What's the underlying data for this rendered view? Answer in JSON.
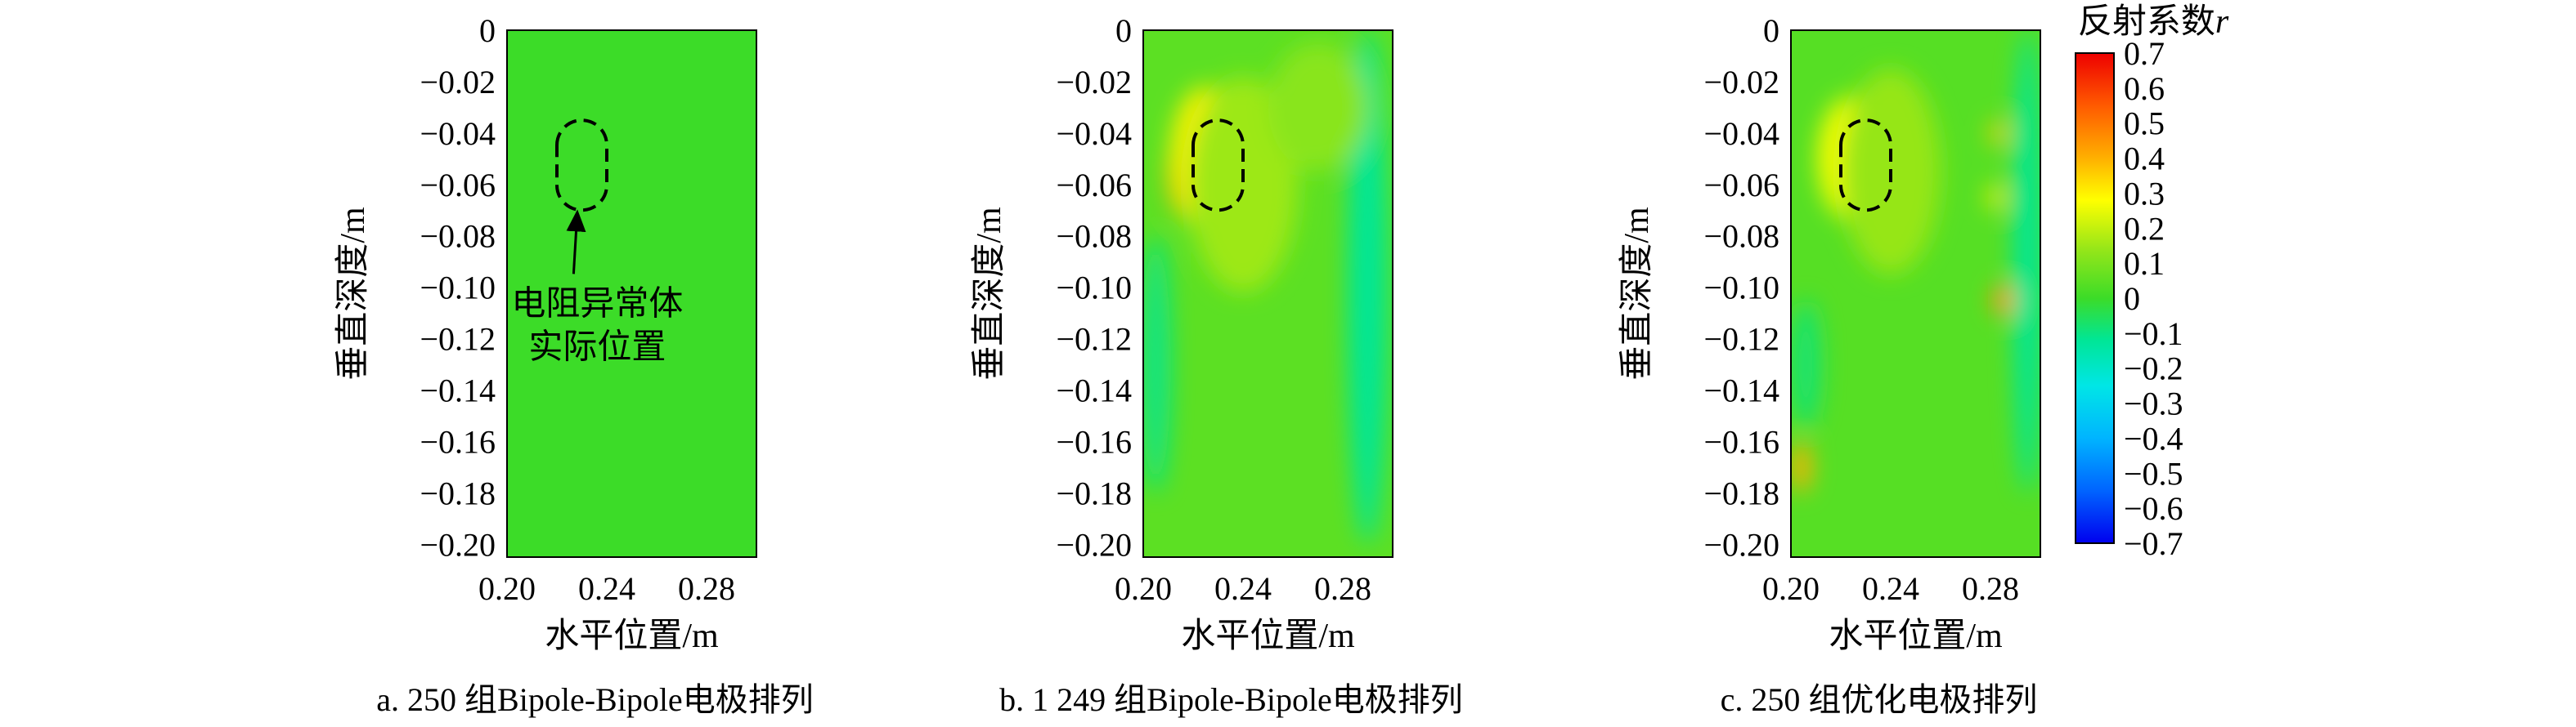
{
  "chart_data": [
    {
      "type": "heatmap",
      "panel": "a",
      "caption": "a. 250 组Bipole-Bipole电极排列",
      "xlabel": "水平位置/m",
      "ylabel": "垂直深度/m",
      "xlim": [
        0.2,
        0.3
      ],
      "ylim": [
        -0.205,
        0
      ],
      "x_ticks": [
        "0.20",
        "0.24",
        "0.28"
      ],
      "y_ticks": [
        "0",
        "−0.02",
        "−0.04",
        "−0.06",
        "−0.08",
        "−0.10",
        "−0.12",
        "−0.14",
        "−0.16",
        "−0.18",
        "−0.20"
      ],
      "background_value": 0.0,
      "blobs": [],
      "anomaly_outline": {
        "x_center": 0.23,
        "y_top": -0.035,
        "y_bottom": -0.07,
        "width": 0.02
      },
      "annotation": {
        "lines": [
          "电阻异常体",
          "实际位置"
        ],
        "arrow_to": [
          0.228,
          -0.071
        ]
      }
    },
    {
      "type": "heatmap",
      "panel": "b",
      "caption": "b. 1 249 组Bipole-Bipole电极排列",
      "xlabel": "水平位置/m",
      "ylabel": "垂直深度/m",
      "xlim": [
        0.2,
        0.3
      ],
      "ylim": [
        -0.205,
        0
      ],
      "x_ticks": [
        "0.20",
        "0.24",
        "0.28"
      ],
      "y_ticks": [
        "0",
        "−0.02",
        "−0.04",
        "−0.06",
        "−0.08",
        "−0.10",
        "−0.12",
        "−0.14",
        "−0.16",
        "−0.18",
        "−0.20"
      ],
      "background_value": 0.05,
      "blobs": [
        {
          "x": 0.218,
          "y": -0.055,
          "rx": 0.008,
          "ry": 0.018,
          "value": 0.5
        },
        {
          "x": 0.225,
          "y": -0.05,
          "rx": 0.014,
          "ry": 0.028,
          "value": 0.3
        },
        {
          "x": 0.24,
          "y": -0.06,
          "rx": 0.022,
          "ry": 0.042,
          "value": 0.15
        },
        {
          "x": 0.205,
          "y": -0.13,
          "rx": 0.006,
          "ry": 0.05,
          "value": -0.1
        },
        {
          "x": 0.29,
          "y": -0.1,
          "rx": 0.008,
          "ry": 0.1,
          "value": -0.12
        },
        {
          "x": 0.27,
          "y": -0.03,
          "rx": 0.02,
          "ry": 0.025,
          "value": 0.12
        }
      ],
      "anomaly_outline": {
        "x_center": 0.23,
        "y_top": -0.035,
        "y_bottom": -0.07,
        "width": 0.02
      }
    },
    {
      "type": "heatmap",
      "panel": "c",
      "caption": "c. 250 组优化电极排列",
      "xlabel": "水平位置/m",
      "ylabel": "垂直深度/m",
      "xlim": [
        0.2,
        0.3
      ],
      "ylim": [
        -0.205,
        0
      ],
      "x_ticks": [
        "0.20",
        "0.24",
        "0.28"
      ],
      "y_ticks": [
        "0",
        "−0.02",
        "−0.04",
        "−0.06",
        "−0.08",
        "−0.10",
        "−0.12",
        "−0.14",
        "−0.16",
        "−0.18",
        "−0.20"
      ],
      "background_value": 0.04,
      "blobs": [
        {
          "x": 0.219,
          "y": -0.048,
          "rx": 0.008,
          "ry": 0.014,
          "value": 0.45
        },
        {
          "x": 0.224,
          "y": -0.05,
          "rx": 0.013,
          "ry": 0.024,
          "value": 0.28
        },
        {
          "x": 0.24,
          "y": -0.055,
          "rx": 0.02,
          "ry": 0.04,
          "value": 0.14
        },
        {
          "x": 0.204,
          "y": -0.17,
          "rx": 0.004,
          "ry": 0.01,
          "value": 0.4
        },
        {
          "x": 0.206,
          "y": -0.13,
          "rx": 0.006,
          "ry": 0.025,
          "value": -0.08
        },
        {
          "x": 0.295,
          "y": -0.09,
          "rx": 0.006,
          "ry": 0.09,
          "value": -0.12
        },
        {
          "x": 0.285,
          "y": -0.105,
          "rx": 0.004,
          "ry": 0.006,
          "value": 0.45
        },
        {
          "x": 0.283,
          "y": -0.04,
          "rx": 0.003,
          "ry": 0.005,
          "value": 0.35
        },
        {
          "x": 0.282,
          "y": -0.065,
          "rx": 0.003,
          "ry": 0.005,
          "value": 0.3
        }
      ],
      "anomaly_outline": {
        "x_center": 0.23,
        "y_top": -0.035,
        "y_bottom": -0.07,
        "width": 0.02
      },
      "colorbar": {
        "title": "反射系数",
        "title_symbol": "r",
        "range": [
          -0.7,
          0.7
        ],
        "ticks": [
          "0.7",
          "0.6",
          "0.5",
          "0.4",
          "0.3",
          "0.2",
          "0.1",
          "0",
          "−0.1",
          "−0.2",
          "−0.3",
          "−0.4",
          "−0.5",
          "−0.6",
          "−0.7"
        ],
        "stops": [
          {
            "value": 0.7,
            "color": "#ee0000"
          },
          {
            "value": 0.55,
            "color": "#ff5a00"
          },
          {
            "value": 0.4,
            "color": "#ffb000"
          },
          {
            "value": 0.28,
            "color": "#ffff00"
          },
          {
            "value": 0.14,
            "color": "#96e619"
          },
          {
            "value": 0.0,
            "color": "#3cdc28"
          },
          {
            "value": -0.12,
            "color": "#00e696"
          },
          {
            "value": -0.25,
            "color": "#00e6e6"
          },
          {
            "value": -0.4,
            "color": "#00b4ff"
          },
          {
            "value": -0.55,
            "color": "#0064ff"
          },
          {
            "value": -0.7,
            "color": "#0000ee"
          }
        ]
      }
    }
  ]
}
